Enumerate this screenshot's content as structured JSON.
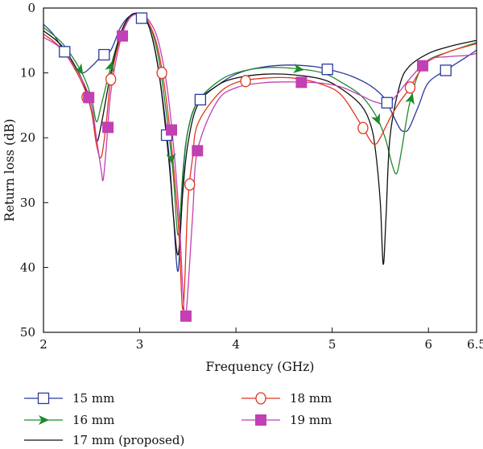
{
  "chart_data": {
    "type": "line",
    "xlabel": "Frequency (GHz)",
    "ylabel": "Return loss (dB)",
    "xlim": [
      2,
      6.5
    ],
    "ylim": [
      0,
      50
    ],
    "y_inverted": true,
    "grid": false,
    "legend_position": "bottom",
    "x_ticks": [
      {
        "value": 2,
        "label": "2"
      },
      {
        "value": 3,
        "label": "3"
      },
      {
        "value": 4,
        "label": "4"
      },
      {
        "value": 5,
        "label": "5"
      },
      {
        "value": 6,
        "label": "6"
      },
      {
        "value": 6.5,
        "label": "6.5"
      }
    ],
    "y_ticks": [
      {
        "value": 0,
        "label": "0"
      },
      {
        "value": 10,
        "label": "10"
      },
      {
        "value": 20,
        "label": "20"
      },
      {
        "value": 30,
        "label": "30"
      },
      {
        "value": 40,
        "label": "40"
      },
      {
        "value": 50,
        "label": "50"
      }
    ],
    "series": [
      {
        "name": "15 mm",
        "color": "#2b3a9c",
        "marker": "open-square",
        "x": [
          2.0,
          2.1,
          2.2,
          2.3,
          2.4,
          2.5,
          2.6,
          2.7,
          2.8,
          2.9,
          3.0,
          3.1,
          3.2,
          3.3,
          3.35,
          3.4,
          3.45,
          3.5,
          3.6,
          3.8,
          4.0,
          4.2,
          4.5,
          4.8,
          5.0,
          5.2,
          5.4,
          5.55,
          5.6,
          5.7,
          5.75,
          5.8,
          5.9,
          6.0,
          6.2,
          6.4,
          6.5
        ],
        "y": [
          2.5,
          4,
          6.3,
          8.5,
          10,
          9,
          7.5,
          6.5,
          3,
          1.2,
          1.2,
          3,
          10,
          22,
          32,
          40.5,
          26,
          19,
          14.5,
          12,
          10.2,
          9.3,
          8.8,
          9.0,
          9.6,
          10.5,
          12,
          14,
          15.5,
          18.5,
          19,
          18.5,
          15,
          11.5,
          9.4,
          7.5,
          6.5
        ],
        "markers_x": [
          2.22,
          2.63,
          3.02,
          3.28,
          3.63,
          4.95,
          5.57,
          6.18
        ]
      },
      {
        "name": "16 mm",
        "color": "#1e8a2a",
        "marker": "filled-arrow",
        "x": [
          2.0,
          2.2,
          2.4,
          2.5,
          2.55,
          2.6,
          2.7,
          2.8,
          2.9,
          3.0,
          3.1,
          3.2,
          3.3,
          3.35,
          3.4,
          3.45,
          3.5,
          3.6,
          3.8,
          4.0,
          4.3,
          4.6,
          4.9,
          5.1,
          5.3,
          5.45,
          5.55,
          5.62,
          5.67,
          5.72,
          5.8,
          5.9,
          6.0,
          6.2,
          6.4,
          6.5
        ],
        "y": [
          3,
          5.5,
          10,
          14,
          17.5,
          15,
          9,
          4,
          1.2,
          1.0,
          2.5,
          8,
          19,
          26,
          35,
          25,
          19,
          14.5,
          11.5,
          10,
          9.2,
          9.3,
          10,
          11.5,
          13.5,
          16.5,
          20,
          24,
          25.5,
          22,
          15,
          10,
          8,
          6.8,
          5.8,
          5.3
        ],
        "markers_x": [
          2.38,
          2.7,
          3.33,
          4.65,
          5.47,
          5.82
        ]
      },
      {
        "name": "17 mm (proposed)",
        "color": "#111111",
        "marker": "none",
        "x": [
          2.0,
          2.2,
          2.4,
          2.5,
          2.55,
          2.6,
          2.7,
          2.8,
          2.9,
          3.0,
          3.1,
          3.2,
          3.3,
          3.35,
          3.4,
          3.45,
          3.5,
          3.6,
          3.8,
          4.0,
          4.3,
          4.6,
          4.9,
          5.1,
          5.3,
          5.4,
          5.45,
          5.5,
          5.53,
          5.56,
          5.6,
          5.7,
          5.8,
          6.0,
          6.2,
          6.4,
          6.5
        ],
        "y": [
          3.5,
          6,
          11,
          16,
          20.5,
          18,
          10,
          4,
          1.2,
          1.0,
          3,
          10,
          23,
          32,
          38,
          28,
          21,
          15,
          12,
          10.8,
          10.2,
          10.3,
          11,
          12.5,
          15,
          18,
          22,
          30,
          39.5,
          32,
          20,
          12,
          9,
          7,
          6,
          5.3,
          5.0
        ],
        "markers_x": []
      },
      {
        "name": "18 mm",
        "color": "#e0351c",
        "marker": "open-circle",
        "x": [
          2.0,
          2.2,
          2.4,
          2.5,
          2.55,
          2.6,
          2.65,
          2.7,
          2.8,
          2.9,
          3.0,
          3.1,
          3.2,
          3.3,
          3.4,
          3.45,
          3.5,
          3.55,
          3.6,
          3.8,
          4.0,
          4.3,
          4.6,
          4.9,
          5.1,
          5.3,
          5.4,
          5.45,
          5.5,
          5.6,
          5.7,
          5.8,
          5.9,
          6.0,
          6.2,
          6.4,
          6.5
        ],
        "y": [
          4,
          6.5,
          11.5,
          16,
          21,
          23,
          18,
          11,
          4.5,
          1.5,
          1.0,
          2.5,
          7,
          17,
          33,
          46.5,
          30,
          23,
          18,
          13.5,
          11.5,
          10.8,
          10.8,
          11.8,
          13.5,
          18,
          20.5,
          21,
          20,
          17,
          14.5,
          12.5,
          10,
          8.2,
          6.8,
          5.9,
          5.5
        ],
        "markers_x": [
          2.45,
          2.7,
          3.23,
          3.52,
          4.1,
          5.32,
          5.81
        ]
      },
      {
        "name": "19 mm",
        "color": "#c23fb4",
        "marker": "filled-square",
        "x": [
          2.0,
          2.2,
          2.4,
          2.5,
          2.55,
          2.6,
          2.62,
          2.65,
          2.7,
          2.8,
          2.9,
          3.0,
          3.1,
          3.2,
          3.3,
          3.4,
          3.45,
          3.48,
          3.55,
          3.6,
          3.8,
          4.0,
          4.3,
          4.6,
          4.9,
          5.1,
          5.3,
          5.45,
          5.6,
          5.8,
          6.0,
          6.2,
          6.4,
          6.5
        ],
        "y": [
          4.5,
          6.5,
          11,
          15,
          20,
          25,
          26.5,
          22,
          13,
          5,
          1.5,
          1.0,
          2.0,
          5.5,
          14,
          30,
          44,
          47.5,
          32,
          22,
          14.5,
          12.3,
          11.5,
          11.4,
          11.6,
          12.2,
          13.5,
          14.5,
          14.5,
          11,
          8,
          7.5,
          7.3,
          7.0
        ],
        "markers_x": [
          2.47,
          2.67,
          2.82,
          3.33,
          3.48,
          3.6,
          4.68,
          5.94
        ]
      }
    ],
    "legend": [
      {
        "label": "15 mm",
        "series_index": 0
      },
      {
        "label": "18 mm",
        "series_index": 3
      },
      {
        "label": "16 mm",
        "series_index": 1
      },
      {
        "label": "19 mm",
        "series_index": 4
      },
      {
        "label": "17 mm (proposed)",
        "series_index": 2
      }
    ]
  }
}
